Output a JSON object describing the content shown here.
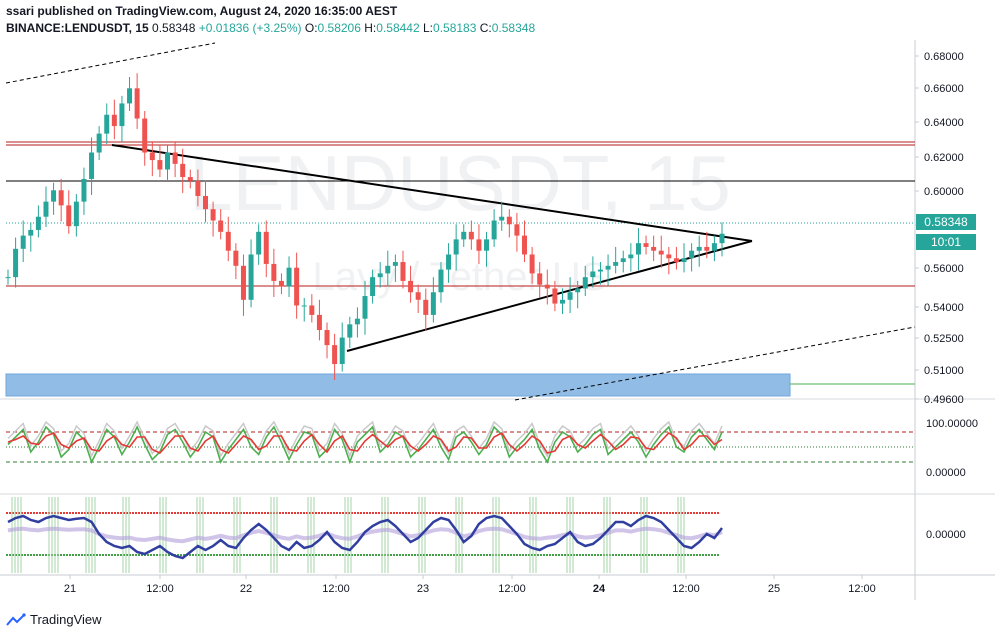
{
  "header": {
    "publisher_line": "ssari published on TradingView.com, August 24, 2020 16:35:00 AEST",
    "symbol": "BINANCE:LENDUSDT, 15",
    "last": "0.58348",
    "change": "+0.01836 (+3.25%)",
    "o_label": "O:",
    "o": "0.58206",
    "h_label": "H:",
    "h": "0.58442",
    "l_label": "L:",
    "l": "0.58183",
    "c_label": "C:",
    "c": "0.58348"
  },
  "watermark": {
    "line1": "LENDUSDT, 15",
    "line2": "Lavy / Tether US"
  },
  "footer": {
    "brand": "TradingView"
  },
  "colors": {
    "up": "#26a69a",
    "down": "#ef5350",
    "trendline": "#000000",
    "resistance": "#b71c1c",
    "support_zone": "#90bce6",
    "rsi": "#4caf50",
    "rsi_signal": "#e53935",
    "osc": "#303f9f"
  },
  "chart_data": [
    {
      "type": "candlestick",
      "panel": "price",
      "y_ticks": [
        "0.68000",
        "0.66000",
        "0.64000",
        "0.62000",
        "0.60000",
        "0.58000",
        "0.56000",
        "0.54000",
        "0.52500",
        "0.51000",
        "0.49600"
      ],
      "x_ticks": [
        "21",
        "12:00",
        "22",
        "12:00",
        "23",
        "12:00",
        "24",
        "12:00",
        "25",
        "12:00"
      ],
      "last_price_label": "0.58348",
      "countdown_label": "10:01",
      "y_range": [
        0.496,
        0.684
      ],
      "series_close": [
        0.56,
        0.575,
        0.582,
        0.585,
        0.592,
        0.6,
        0.606,
        0.598,
        0.587,
        0.6,
        0.612,
        0.626,
        0.636,
        0.646,
        0.64,
        0.652,
        0.66,
        0.644,
        0.626,
        0.622,
        0.617,
        0.626,
        0.62,
        0.613,
        0.611,
        0.603,
        0.596,
        0.59,
        0.584,
        0.574,
        0.566,
        0.548,
        0.572,
        0.584,
        0.567,
        0.558,
        0.555,
        0.565,
        0.545,
        0.545,
        0.54,
        0.532,
        0.524,
        0.514,
        0.528,
        0.535,
        0.538,
        0.55,
        0.56,
        0.562,
        0.566,
        0.568,
        0.558,
        0.552,
        0.548,
        0.54,
        0.552,
        0.564,
        0.572,
        0.58,
        0.584,
        0.58,
        0.574,
        0.58,
        0.59,
        0.592,
        0.588,
        0.582,
        0.572,
        0.562,
        0.556,
        0.554,
        0.546,
        0.548,
        0.552,
        0.554,
        0.56,
        0.563,
        0.564,
        0.566,
        0.568,
        0.57,
        0.572,
        0.578,
        0.576,
        0.574,
        0.572,
        0.57,
        0.568,
        0.57,
        0.574,
        0.576,
        0.574,
        0.578,
        0.583
      ]
    },
    {
      "type": "line",
      "panel": "stoch_rsi",
      "y_ticks": [
        "100.00000",
        "0.00000"
      ],
      "levels": [
        80,
        50,
        20
      ],
      "series": [
        {
          "values": [
            55,
            70,
            85,
            40,
            60,
            90,
            75,
            30,
            45,
            80,
            65,
            20,
            50,
            85,
            70,
            35,
            60,
            90,
            55,
            25,
            40,
            75,
            85,
            60,
            30,
            50,
            80,
            70,
            20,
            45,
            65,
            85,
            50,
            35,
            70,
            90,
            60,
            25,
            55,
            80,
            75,
            30,
            45,
            85,
            65,
            20,
            60,
            75,
            90,
            40,
            55,
            80,
            70,
            30,
            45,
            65,
            85,
            50,
            25,
            70,
            80,
            60,
            35,
            55,
            90,
            75,
            30,
            50,
            65,
            85,
            45,
            20,
            60,
            80,
            70,
            40,
            55,
            75,
            85,
            35,
            50,
            65,
            80,
            60,
            30,
            55,
            75,
            90,
            50,
            40,
            70,
            85,
            65,
            45,
            80
          ]
        },
        {
          "values": [
            60,
            65,
            72,
            58,
            55,
            72,
            78,
            55,
            48,
            62,
            68,
            45,
            42,
            62,
            72,
            55,
            50,
            70,
            70,
            45,
            38,
            55,
            72,
            72,
            48,
            42,
            62,
            72,
            45,
            38,
            55,
            72,
            65,
            45,
            52,
            72,
            72,
            45,
            42,
            62,
            75,
            55,
            40,
            62,
            72,
            45,
            42,
            62,
            75,
            62,
            50,
            65,
            72,
            52,
            42,
            55,
            72,
            65,
            42,
            50,
            70,
            68,
            48,
            48,
            70,
            78,
            55,
            42,
            55,
            72,
            62,
            38,
            42,
            65,
            72,
            55,
            48,
            62,
            75,
            62,
            45,
            55,
            70,
            68,
            48,
            45,
            62,
            78,
            68,
            45,
            55,
            72,
            72,
            55,
            65
          ]
        }
      ]
    },
    {
      "type": "line",
      "panel": "oscillator",
      "y_ticks": [
        "0.00000"
      ],
      "series": [
        {
          "values": [
            0.3,
            0.4,
            0.45,
            0.35,
            0.3,
            0.4,
            0.45,
            0.4,
            0.35,
            0.38,
            0.4,
            0.3,
            0.0,
            -0.2,
            -0.3,
            -0.35,
            -0.3,
            -0.45,
            -0.5,
            -0.4,
            -0.3,
            -0.45,
            -0.55,
            -0.6,
            -0.45,
            -0.3,
            -0.4,
            -0.3,
            -0.15,
            -0.3,
            -0.35,
            -0.1,
            0.1,
            0.25,
            0.1,
            -0.1,
            -0.3,
            -0.4,
            -0.2,
            -0.35,
            -0.3,
            -0.15,
            0.05,
            -0.2,
            -0.35,
            -0.4,
            -0.2,
            0.05,
            0.2,
            0.3,
            0.35,
            0.2,
            0.0,
            -0.2,
            -0.1,
            0.1,
            0.3,
            0.4,
            0.35,
            0.1,
            -0.2,
            -0.05,
            0.25,
            0.4,
            0.45,
            0.4,
            0.2,
            0.0,
            -0.25,
            -0.35,
            -0.4,
            -0.3,
            -0.25,
            -0.1,
            0.05,
            -0.2,
            -0.3,
            -0.25,
            -0.1,
            0.1,
            0.3,
            0.3,
            0.2,
            0.35,
            0.45,
            0.4,
            0.3,
            0.1,
            -0.1,
            -0.3,
            -0.35,
            -0.2,
            0.0,
            -0.1,
            0.15
          ]
        }
      ]
    }
  ]
}
